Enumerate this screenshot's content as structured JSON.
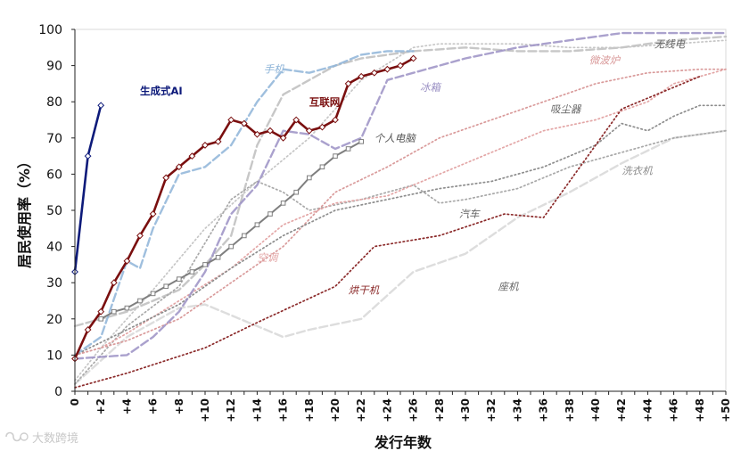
{
  "chart_data": {
    "type": "line",
    "title": "",
    "xlabel": "发行年数",
    "ylabel": "居民使用率（%）",
    "ylim": [
      0,
      100
    ],
    "xlim": [
      0,
      50
    ],
    "yticks": [
      0,
      10,
      20,
      30,
      40,
      50,
      60,
      70,
      80,
      90,
      100
    ],
    "xticks": [
      "0",
      "+2",
      "+4",
      "+6",
      "+8",
      "+10",
      "+12",
      "+14",
      "+16",
      "+18",
      "+20",
      "+22",
      "+24",
      "+26",
      "+28",
      "+30",
      "+32",
      "+34",
      "+36",
      "+38",
      "+40",
      "+42",
      "+44",
      "+46",
      "+48",
      "+50"
    ],
    "series": [
      {
        "name": "生成式AI",
        "color": "#0d1a7a",
        "style": "solid-marker",
        "label_bold": true,
        "x": [
          0,
          1,
          2
        ],
        "values": [
          33,
          65,
          79
        ]
      },
      {
        "name": "互联网",
        "color": "#7a0f0f",
        "style": "solid-marker",
        "label_bold": true,
        "x": [
          0,
          1,
          2,
          3,
          4,
          5,
          6,
          7,
          8,
          9,
          10,
          11,
          12,
          13,
          14,
          15,
          16,
          17,
          18,
          19,
          20,
          21,
          22,
          23,
          24,
          25,
          26
        ],
        "values": [
          9,
          17,
          22,
          30,
          36,
          43,
          49,
          59,
          62,
          65,
          68,
          69,
          75,
          74,
          71,
          72,
          70,
          75,
          72,
          73,
          75,
          85,
          87,
          88,
          89,
          90,
          92
        ]
      },
      {
        "name": "个人电脑",
        "color": "#7f7f7f",
        "style": "solid-marker",
        "label_bold": false,
        "x": [
          2,
          3,
          4,
          5,
          6,
          7,
          8,
          9,
          10,
          11,
          12,
          13,
          14,
          15,
          16,
          17,
          18,
          19,
          20,
          21,
          22
        ],
        "values": [
          20,
          22,
          23,
          25,
          27,
          29,
          31,
          33,
          35,
          37,
          40,
          43,
          46,
          49,
          52,
          55,
          59,
          62,
          65,
          67,
          69
        ]
      },
      {
        "name": "手机",
        "color": "#8eb4d8",
        "style": "dashed",
        "label_bold": false,
        "x": [
          0,
          2,
          4,
          5,
          6,
          8,
          10,
          12,
          14,
          16,
          18,
          20,
          22,
          24,
          26
        ],
        "values": [
          10,
          15,
          36,
          34,
          45,
          60,
          62,
          68,
          80,
          89,
          88,
          90,
          93,
          94,
          94
        ]
      },
      {
        "name": "冰箱",
        "color": "#9b91c4",
        "style": "dashed",
        "label_bold": false,
        "x": [
          0,
          4,
          6,
          8,
          10,
          12,
          14,
          16,
          18,
          20,
          22,
          24,
          26,
          30,
          34,
          38,
          42,
          46,
          50
        ],
        "values": [
          9,
          10,
          15,
          22,
          33,
          49,
          57,
          72,
          71,
          67,
          70,
          86,
          88,
          92,
          95,
          97,
          99,
          99,
          99
        ]
      },
      {
        "name": "吸尘器",
        "color": "#bdbdbd",
        "style": "dashed",
        "label_bold": false,
        "x": [
          0,
          4,
          8,
          10,
          12,
          14,
          16,
          18,
          20,
          22,
          26,
          30,
          34,
          38,
          42,
          46,
          50
        ],
        "values": [
          18,
          22,
          28,
          35,
          43,
          68,
          82,
          86,
          90,
          92,
          94,
          95,
          94,
          94,
          95,
          97,
          98
        ]
      },
      {
        "name": "无线电",
        "color": "#c6c6c6",
        "style": "dotted",
        "label_bold": false,
        "x": [
          0,
          2,
          6,
          10,
          14,
          18,
          22,
          26,
          28,
          30,
          34,
          38,
          42,
          46,
          50
        ],
        "values": [
          3,
          12,
          28,
          45,
          58,
          70,
          86,
          95,
          96,
          96,
          96,
          95,
          95,
          96,
          97
        ]
      },
      {
        "name": "微波炉",
        "color": "#d99a9a",
        "style": "dotted",
        "label_bold": false,
        "x": [
          0,
          2,
          4,
          8,
          12,
          16,
          20,
          24,
          28,
          32,
          36,
          40,
          44,
          48,
          50
        ],
        "values": [
          10,
          12,
          14,
          20,
          30,
          40,
          55,
          62,
          70,
          75,
          80,
          85,
          88,
          89,
          89
        ]
      },
      {
        "name": "空调",
        "color": "#e3a6a6",
        "style": "dotted",
        "label_bold": false,
        "x": [
          0,
          2,
          4,
          8,
          12,
          16,
          20,
          24,
          28,
          32,
          36,
          40,
          44,
          46,
          50
        ],
        "values": [
          10,
          12,
          16,
          25,
          34,
          46,
          52,
          54,
          60,
          66,
          72,
          75,
          80,
          85,
          89
        ]
      },
      {
        "name": "洗衣机",
        "color": "#8d8d8d",
        "style": "dotted",
        "label_bold": false,
        "x": [
          0,
          4,
          8,
          12,
          16,
          20,
          24,
          28,
          32,
          36,
          40,
          42,
          44,
          46,
          48,
          50
        ],
        "values": [
          10,
          17,
          24,
          34,
          43,
          50,
          53,
          56,
          58,
          62,
          68,
          74,
          72,
          76,
          79,
          79
        ]
      },
      {
        "name": "汽车",
        "color": "#a8a8a8",
        "style": "dotted",
        "label_bold": false,
        "x": [
          0,
          4,
          8,
          12,
          14,
          16,
          18,
          22,
          26,
          28,
          30,
          34,
          38,
          42,
          46,
          50
        ],
        "values": [
          2,
          18,
          29,
          53,
          58,
          55,
          50,
          53,
          57,
          52,
          53,
          56,
          62,
          66,
          70,
          72
        ]
      },
      {
        "name": "烘干机",
        "color": "#8b2a2a",
        "style": "dotted",
        "label_bold": false,
        "x": [
          0,
          4,
          10,
          14,
          20,
          23,
          28,
          33,
          36,
          42,
          48
        ],
        "values": [
          1,
          5,
          12,
          19,
          29,
          40,
          43,
          49,
          48,
          78,
          87
        ]
      },
      {
        "name": "座机",
        "color": "#d7d7d7",
        "style": "dashed",
        "label_bold": false,
        "x": [
          0,
          4,
          8,
          10,
          14,
          16,
          18,
          22,
          26,
          30,
          34,
          38,
          42,
          46,
          50
        ],
        "values": [
          2,
          15,
          23,
          24,
          18,
          15,
          17,
          20,
          33,
          38,
          48,
          55,
          63,
          70,
          72
        ]
      }
    ],
    "legend": "inline labels"
  },
  "watermark": {
    "text": "大数跨境"
  }
}
